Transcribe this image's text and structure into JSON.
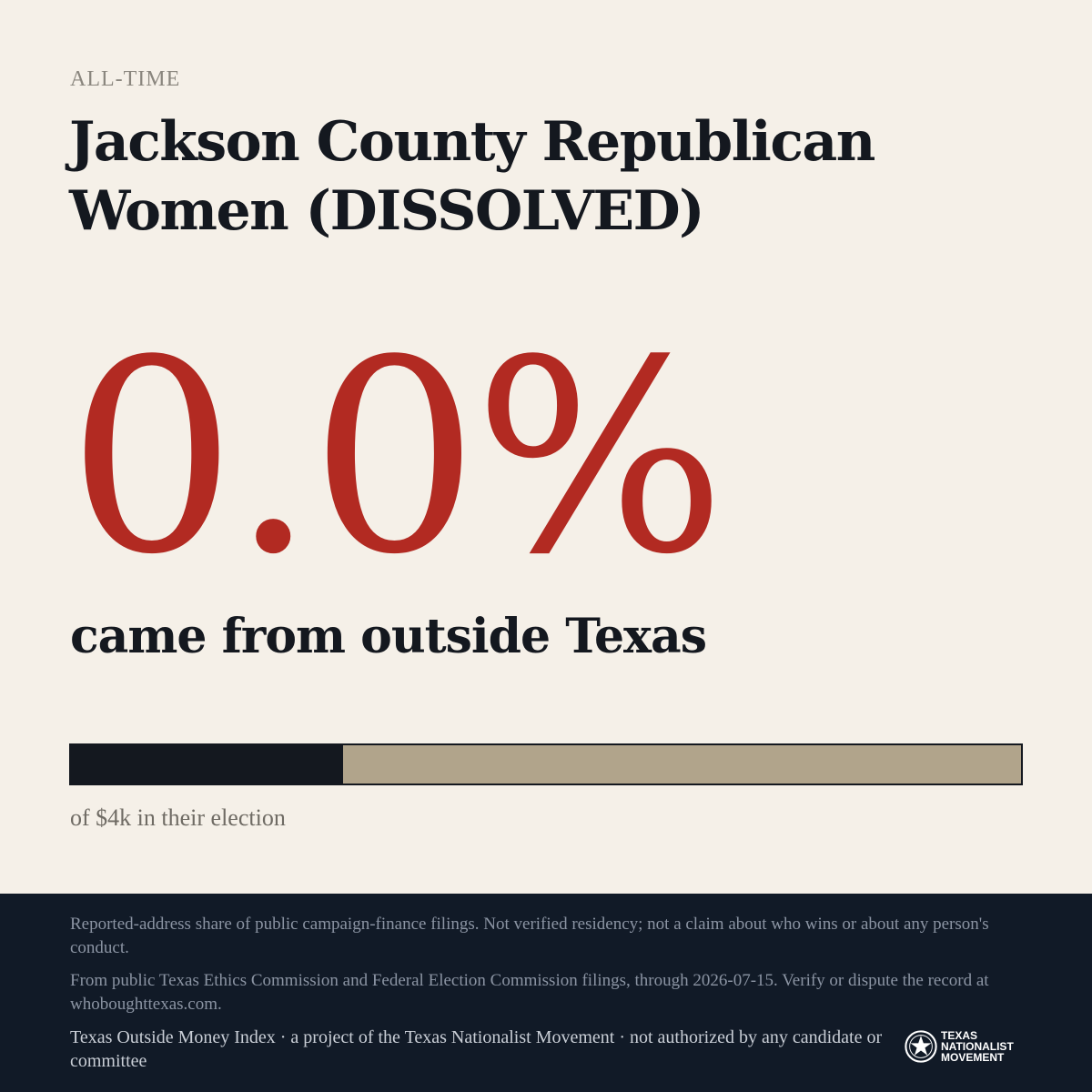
{
  "header": {
    "eyebrow": "ALL-TIME",
    "title": "Jackson County Republican Women (DISSOLVED)"
  },
  "stat": {
    "value": "0.0%",
    "caption": "came from outside Texas"
  },
  "bar": {
    "fill_fraction": 0.286,
    "fill_color": "#14181f",
    "track_color": "#b1a48b",
    "note": "of $4k in their election"
  },
  "footer": {
    "disclaimer": "Reported-address share of public campaign-finance filings. Not verified residency; not a claim about who wins or about any person's conduct.",
    "source": "From public Texas Ethics Commission and Federal Election Commission filings, through 2026-07-15. Verify or dispute the record at whoboughttexas.com.",
    "credit": "Texas Outside Money Index · a project of the Texas Nationalist Movement · not authorized by any candidate or committee",
    "logo": {
      "icon": "star-seal-icon",
      "line1": "TEXAS",
      "line2": "NATIONALIST",
      "line3": "MOVEMENT"
    }
  },
  "colors": {
    "background": "#f5f0e8",
    "accent": "#b22a22",
    "ink": "#14181f",
    "footer_bg": "#111a27"
  }
}
